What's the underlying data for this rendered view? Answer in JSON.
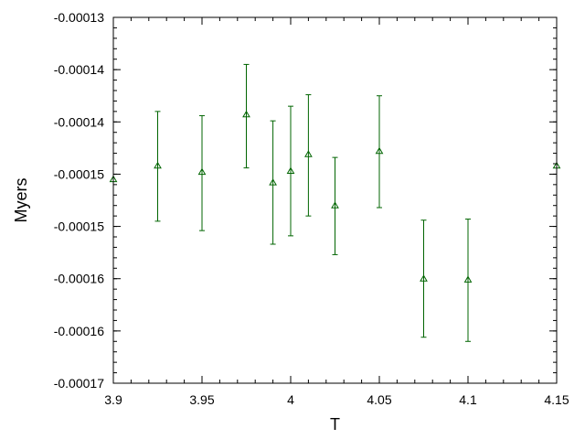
{
  "chart_data": {
    "type": "scatter",
    "xlabel": "T",
    "ylabel": "Myers",
    "xlim": [
      3.9,
      4.15
    ],
    "ylim": [
      -0.000165,
      -0.00013
    ],
    "x_ticks": [
      3.9,
      3.95,
      4.0,
      4.05,
      4.1,
      4.15
    ],
    "x_tick_labels": [
      "3.9",
      "3.95",
      "4",
      "4.05",
      "4.1",
      "4.15"
    ],
    "y_ticks": [
      -0.00013,
      -0.000135,
      -0.00014,
      -0.000145,
      -0.00015,
      -0.000155,
      -0.00016,
      -0.000165
    ],
    "y_tick_labels": [
      "-0.00013",
      "-0.00014",
      "-0.00014",
      "-0.00015",
      "-0.00015",
      "-0.00016",
      "-0.00016",
      "-0.00017"
    ],
    "grid": false,
    "marker": "open-triangle",
    "color": "#006400",
    "points": [
      {
        "x": 3.9,
        "y": -0.0001455,
        "err_low": 0.0,
        "err_high": 0.0
      },
      {
        "x": 3.925,
        "y": -0.0001442,
        "err_low": 5.3e-06,
        "err_high": 5.2e-06
      },
      {
        "x": 3.95,
        "y": -0.0001448,
        "err_low": 5.6e-06,
        "err_high": 5.4e-06
      },
      {
        "x": 3.975,
        "y": -0.0001393,
        "err_low": 5.1e-06,
        "err_high": 4.8e-06
      },
      {
        "x": 3.99,
        "y": -0.0001458,
        "err_low": 5.9e-06,
        "err_high": 5.9e-06
      },
      {
        "x": 4.0,
        "y": -0.0001447,
        "err_low": 6.2e-06,
        "err_high": 6.2e-06
      },
      {
        "x": 4.01,
        "y": -0.0001431,
        "err_low": 5.9e-06,
        "err_high": 5.7e-06
      },
      {
        "x": 4.025,
        "y": -0.000148,
        "err_low": 4.7e-06,
        "err_high": 4.6e-06
      },
      {
        "x": 4.05,
        "y": -0.0001428,
        "err_low": 5.4e-06,
        "err_high": 5.3e-06
      },
      {
        "x": 4.075,
        "y": -0.000155,
        "err_low": 5.6e-06,
        "err_high": 5.6e-06
      },
      {
        "x": 4.1,
        "y": -0.0001551,
        "err_low": 5.9e-06,
        "err_high": 5.8e-06
      },
      {
        "x": 4.15,
        "y": -0.0001442,
        "err_low": 0.0,
        "err_high": 0.0
      }
    ]
  }
}
